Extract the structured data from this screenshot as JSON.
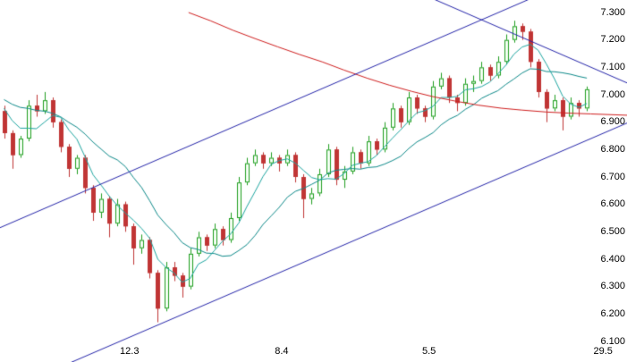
{
  "chart_data": {
    "type": "candlestick",
    "title": "",
    "background": "#ffffff",
    "grid": false,
    "y_axis": {
      "side": "right",
      "min": 6.1,
      "max": 7.3,
      "tick_step": 0.1,
      "tick_labels": [
        "7.300",
        "7.200",
        "7.100",
        "7.000",
        "6.900",
        "6.800",
        "6.700",
        "6.600",
        "6.500",
        "6.400",
        "6.300",
        "6.200",
        "6.100"
      ]
    },
    "x_axis": {
      "tick_labels": [
        {
          "label": "12.3",
          "index": 15.5
        },
        {
          "label": "8.4",
          "index": 34.3
        },
        {
          "label": "5.5",
          "index": 52.5
        },
        {
          "label": "29.5",
          "index": 74.0
        }
      ]
    },
    "colors": {
      "up_fill": "#f4fff4",
      "up_line": "#1f9e1f",
      "down_fill": "#c03535",
      "down_line": "#c03535",
      "ma_fast": "#1ea6a1",
      "ma_slow": "#0e8a8a",
      "ma_long": "#d01f1f",
      "trendline": "#2626aa",
      "label_text": "#000000"
    },
    "candles": [
      [
        6.94,
        6.96,
        6.84,
        6.86
      ],
      [
        6.86,
        6.87,
        6.73,
        6.78
      ],
      [
        6.78,
        6.85,
        6.77,
        6.84
      ],
      [
        6.84,
        6.98,
        6.83,
        6.96
      ],
      [
        6.96,
        7.0,
        6.92,
        6.94
      ],
      [
        6.94,
        7.01,
        6.93,
        6.98
      ],
      [
        6.98,
        6.99,
        6.88,
        6.9
      ],
      [
        6.9,
        6.91,
        6.79,
        6.81
      ],
      [
        6.81,
        6.82,
        6.7,
        6.73
      ],
      [
        6.73,
        6.78,
        6.71,
        6.77
      ],
      [
        6.77,
        6.78,
        6.64,
        6.66
      ],
      [
        6.66,
        6.67,
        6.54,
        6.57
      ],
      [
        6.57,
        6.64,
        6.55,
        6.62
      ],
      [
        6.62,
        6.63,
        6.48,
        6.53
      ],
      [
        6.53,
        6.62,
        6.52,
        6.6
      ],
      [
        6.6,
        6.61,
        6.5,
        6.52
      ],
      [
        6.52,
        6.53,
        6.38,
        6.44
      ],
      [
        6.44,
        6.49,
        6.42,
        6.47
      ],
      [
        6.47,
        6.48,
        6.33,
        6.35
      ],
      [
        6.35,
        6.36,
        6.17,
        6.22
      ],
      [
        6.22,
        6.39,
        6.21,
        6.37
      ],
      [
        6.37,
        6.39,
        6.32,
        6.34
      ],
      [
        6.34,
        6.35,
        6.26,
        6.3
      ],
      [
        6.3,
        6.44,
        6.29,
        6.42
      ],
      [
        6.42,
        6.5,
        6.41,
        6.48
      ],
      [
        6.48,
        6.49,
        6.43,
        6.45
      ],
      [
        6.45,
        6.53,
        6.44,
        6.51
      ],
      [
        6.51,
        6.52,
        6.45,
        6.47
      ],
      [
        6.47,
        6.57,
        6.46,
        6.55
      ],
      [
        6.55,
        6.7,
        6.54,
        6.68
      ],
      [
        6.68,
        6.77,
        6.67,
        6.75
      ],
      [
        6.75,
        6.8,
        6.74,
        6.78
      ],
      [
        6.78,
        6.79,
        6.73,
        6.75
      ],
      [
        6.75,
        6.79,
        6.74,
        6.77
      ],
      [
        6.77,
        6.78,
        6.72,
        6.75
      ],
      [
        6.75,
        6.8,
        6.74,
        6.78
      ],
      [
        6.78,
        6.79,
        6.68,
        6.7
      ],
      [
        6.7,
        6.71,
        6.55,
        6.62
      ],
      [
        6.62,
        6.66,
        6.6,
        6.64
      ],
      [
        6.64,
        6.73,
        6.63,
        6.71
      ],
      [
        6.71,
        6.82,
        6.7,
        6.8
      ],
      [
        6.8,
        6.81,
        6.67,
        6.69
      ],
      [
        6.69,
        6.74,
        6.66,
        6.72
      ],
      [
        6.72,
        6.81,
        6.71,
        6.79
      ],
      [
        6.79,
        6.8,
        6.73,
        6.75
      ],
      [
        6.75,
        6.85,
        6.74,
        6.83
      ],
      [
        6.83,
        6.84,
        6.78,
        6.8
      ],
      [
        6.8,
        6.9,
        6.79,
        6.88
      ],
      [
        6.88,
        6.97,
        6.87,
        6.95
      ],
      [
        6.95,
        6.96,
        6.88,
        6.9
      ],
      [
        6.9,
        7.01,
        6.89,
        6.99
      ],
      [
        6.99,
        7.0,
        6.93,
        6.95
      ],
      [
        6.95,
        6.96,
        6.9,
        6.92
      ],
      [
        6.92,
        7.05,
        6.91,
        7.03
      ],
      [
        7.03,
        7.08,
        7.02,
        7.06
      ],
      [
        7.06,
        7.07,
        6.97,
        6.99
      ],
      [
        6.99,
        7.0,
        6.94,
        6.97
      ],
      [
        6.97,
        7.06,
        6.96,
        7.04
      ],
      [
        7.04,
        7.07,
        7.01,
        7.05
      ],
      [
        7.05,
        7.12,
        7.04,
        7.1
      ],
      [
        7.1,
        7.11,
        7.05,
        7.07
      ],
      [
        7.07,
        7.14,
        7.06,
        7.12
      ],
      [
        7.12,
        7.22,
        7.11,
        7.2
      ],
      [
        7.2,
        7.27,
        7.19,
        7.25
      ],
      [
        7.25,
        7.26,
        7.2,
        7.23
      ],
      [
        7.23,
        7.24,
        7.1,
        7.12
      ],
      [
        7.12,
        7.13,
        6.99,
        7.01
      ],
      [
        7.01,
        7.02,
        6.9,
        6.95
      ],
      [
        6.95,
        7.0,
        6.94,
        6.98
      ],
      [
        6.98,
        6.99,
        6.87,
        6.92
      ],
      [
        6.92,
        6.99,
        6.91,
        6.97
      ],
      [
        6.97,
        6.98,
        6.92,
        6.95
      ],
      [
        6.95,
        7.03,
        6.94,
        7.02
      ]
    ],
    "pre_closes": [
      7.02,
      7.0,
      6.99,
      7.01,
      7.03,
      7.02,
      7.0,
      6.98,
      6.99,
      7.0,
      6.98,
      6.96,
      6.95
    ],
    "overlays": {
      "ma_fast_period": 5,
      "ma_slow_period": 13,
      "ma_long_points": [
        [
          22.8,
          7.3
        ],
        [
          25.5,
          7.27
        ],
        [
          28.3,
          7.235
        ],
        [
          31.0,
          7.205
        ],
        [
          33.8,
          7.175
        ],
        [
          36.5,
          7.147
        ],
        [
          39.3,
          7.12
        ],
        [
          42.0,
          7.09
        ],
        [
          44.9,
          7.06
        ],
        [
          47.6,
          7.035
        ],
        [
          50.4,
          7.012
        ],
        [
          53.0,
          6.993
        ],
        [
          55.9,
          6.976
        ],
        [
          58.6,
          6.962
        ],
        [
          61.4,
          6.951
        ],
        [
          64.0,
          6.944
        ],
        [
          67.0,
          6.937
        ],
        [
          69.7,
          6.933
        ],
        [
          72.5,
          6.93
        ],
        [
          77.2,
          6.925
        ]
      ],
      "trendlines": [
        {
          "name": "upper-channel-line",
          "from": [
            -0.5,
            6.515
          ],
          "to": [
            65.0,
            7.35
          ]
        },
        {
          "name": "lower-channel-line",
          "from": [
            8.0,
            6.02
          ],
          "to": [
            78.0,
            6.91
          ]
        },
        {
          "name": "descending-resistance-line",
          "from": [
            53.0,
            7.35
          ],
          "to": [
            78.0,
            7.03
          ]
        }
      ]
    }
  }
}
